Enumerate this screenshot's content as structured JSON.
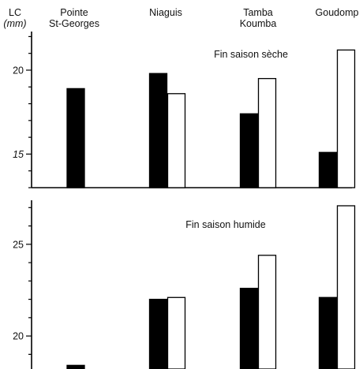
{
  "y_axis_label": {
    "line1": "LC",
    "line2": "(mm)"
  },
  "sites": [
    {
      "line1": "Pointe",
      "line2": "St-Georges"
    },
    {
      "line1": "Niaguis",
      "line2": ""
    },
    {
      "line1": "Tamba",
      "line2": "Koumba"
    },
    {
      "line1": "Goudomp",
      "line2": ""
    }
  ],
  "chart_data": [
    {
      "type": "bar",
      "title": "Fin saison sèche",
      "categories": [
        "Pointe St-Georges",
        "Niaguis",
        "Tamba Koumba",
        "Goudomp"
      ],
      "ylim": [
        13.0,
        22.3
      ],
      "yticks": [
        15,
        20
      ],
      "ytick_labels": [
        "15",
        "20"
      ],
      "series": [
        {
          "fill": "#000000",
          "values": [
            18.9,
            19.8,
            17.4,
            15.1
          ]
        },
        {
          "fill": "#ffffff",
          "values": [
            null,
            18.6,
            19.5,
            21.2
          ]
        }
      ]
    },
    {
      "type": "bar",
      "title": "Fin saison humide",
      "categories": [
        "Pointe St-Georges",
        "Niaguis",
        "Tamba Koumba",
        "Goudomp"
      ],
      "ylim": [
        18.2,
        27.4
      ],
      "yticks": [
        20,
        25
      ],
      "ytick_labels": [
        "20",
        "25"
      ],
      "series": [
        {
          "fill": "#000000",
          "values": [
            18.4,
            22.0,
            22.6,
            22.1
          ]
        },
        {
          "fill": "#ffffff",
          "values": [
            null,
            22.1,
            24.4,
            27.1
          ]
        }
      ]
    }
  ]
}
